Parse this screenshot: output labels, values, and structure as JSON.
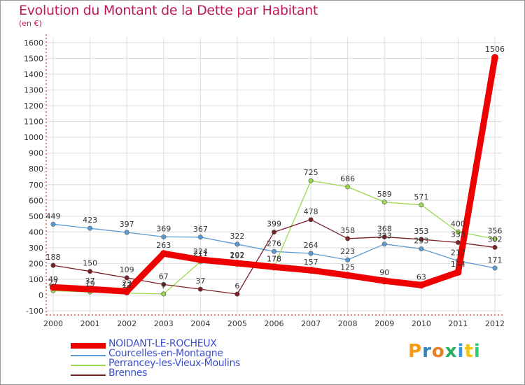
{
  "title": "Evolution du Montant de la Dette par Habitant",
  "subtitle": "(en €)",
  "logo": {
    "text": "Proxiti",
    "colors": [
      "#f39c12",
      "#2e86c1",
      "#e67e22",
      "#27ae60",
      "#3498db",
      "#f1c40f",
      "#2ecc71"
    ]
  },
  "chart_data": {
    "type": "line",
    "x": [
      "2000",
      "2001",
      "2002",
      "2003",
      "2004",
      "2005",
      "2006",
      "2007",
      "2008",
      "2009",
      "2010",
      "2011",
      "2012"
    ],
    "ylim": [
      -100,
      1600
    ],
    "yticks": [
      "-100",
      "0",
      "100",
      "200",
      "300",
      "400",
      "500",
      "600",
      "700",
      "800",
      "900",
      "1000",
      "1100",
      "1200",
      "1300",
      "1400",
      "1500",
      "1600"
    ],
    "grid": true,
    "legend_position": "bottom-left",
    "series": [
      {
        "name": "NOIDANT-LE-ROCHEUX",
        "color": "#ee0000",
        "width": 9,
        "markers": false,
        "values": [
          49,
          37,
          23,
          263,
          224,
          202,
          178,
          157,
          125,
          90,
          63,
          144,
          1506
        ],
        "labels": [
          "49",
          "37",
          "23",
          "263",
          "224",
          "202",
          "178",
          "157",
          "125",
          "90",
          "63",
          "144",
          "1506"
        ]
      },
      {
        "name": "Courcelles-en-Montagne",
        "color": "#5b9bd5",
        "width": 1.3,
        "markers": true,
        "values": [
          449,
          423,
          397,
          369,
          367,
          322,
          276,
          264,
          223,
          323,
          293,
          217,
          171
        ],
        "labels": [
          "449",
          "423",
          "397",
          "369",
          "367",
          "322",
          "276",
          "264",
          "223",
          "323",
          "293",
          "217",
          "171"
        ]
      },
      {
        "name": "Perrancey-les-Vieux-Moulins",
        "color": "#9ad94f",
        "width": 1.3,
        "markers": true,
        "values": [
          27,
          19,
          12,
          7,
          211,
          197,
          178,
          725,
          686,
          589,
          571,
          400,
          356
        ],
        "labels": [
          "27",
          "19",
          "12",
          "7",
          "211",
          "197",
          "178",
          "725",
          "686",
          "589",
          "571",
          "400",
          "356"
        ]
      },
      {
        "name": "Brennes",
        "color": "#7a1f24",
        "width": 1.3,
        "markers": true,
        "values": [
          188,
          150,
          109,
          67,
          37,
          6,
          399,
          478,
          358,
          368,
          353,
          333,
          302
        ],
        "labels": [
          "188",
          "150",
          "109",
          "67",
          "37",
          "6",
          "399",
          "478",
          "358",
          "368",
          "353",
          "333",
          "302"
        ]
      }
    ]
  }
}
